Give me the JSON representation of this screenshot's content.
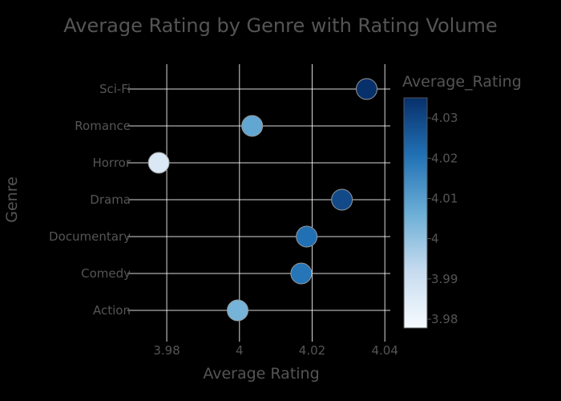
{
  "chart_data": {
    "type": "scatter",
    "title": "Average Rating by Genre with Rating Volume",
    "xlabel": "Average Rating",
    "ylabel": "Genre",
    "xlim": [
      3.9705,
      4.0415
    ],
    "x_ticks": [
      3.98,
      4.0,
      4.02,
      4.04
    ],
    "x_tick_labels": [
      "3.98",
      "4",
      "4.02",
      "4.04"
    ],
    "categories": [
      "Action",
      "Comedy",
      "Documentary",
      "Drama",
      "Horror",
      "Romance",
      "Sci-Fi"
    ],
    "points": [
      {
        "genre": "Action",
        "average_rating": 3.9995
      },
      {
        "genre": "Comedy",
        "average_rating": 4.017
      },
      {
        "genre": "Documentary",
        "average_rating": 4.0185
      },
      {
        "genre": "Drama",
        "average_rating": 4.0282
      },
      {
        "genre": "Horror",
        "average_rating": 3.9778
      },
      {
        "genre": "Romance",
        "average_rating": 4.0035
      },
      {
        "genre": "Sci-Fi",
        "average_rating": 4.035
      }
    ],
    "colorbar": {
      "title": "Average_Rating",
      "range": [
        3.9778,
        4.035
      ],
      "ticks": [
        3.98,
        3.99,
        4.0,
        4.01,
        4.02,
        4.03
      ],
      "tick_labels": [
        "3.98",
        "3.99",
        "4",
        "4.01",
        "4.02",
        "4.03"
      ],
      "colorscale": [
        "#f7fbff",
        "#c6dbef",
        "#6baed6",
        "#2171b5",
        "#08306b"
      ]
    },
    "grid": true,
    "background": "#000000"
  }
}
